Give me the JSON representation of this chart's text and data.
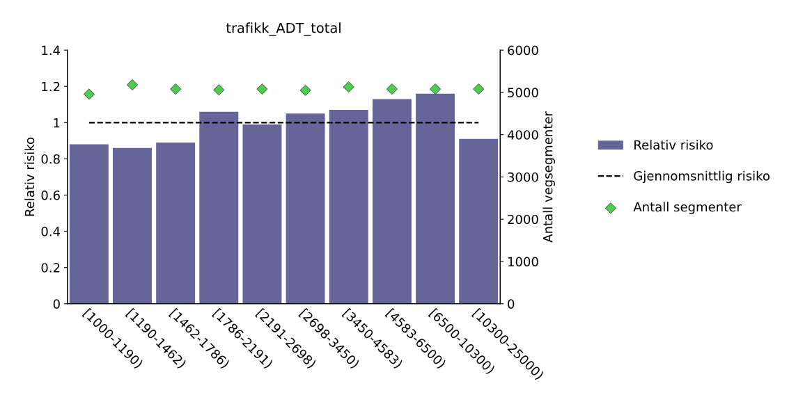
{
  "chart_data": {
    "type": "bar",
    "title": "trafikk_ADT_total",
    "ylabel": "Relativ risiko",
    "y2label": "Antall vegsegmenter",
    "categories": [
      "[1000-1190)",
      "[1190-1462)",
      "[1462-1786)",
      "[1786-2191)",
      "[2191-2698)",
      "[2698-3450)",
      "[3450-4583)",
      "[4583-6500)",
      "[6500-10300)",
      "[10300-25000)"
    ],
    "series": [
      {
        "name": "Relativ risiko",
        "color": "#65659a",
        "values": [
          0.88,
          0.86,
          0.89,
          1.06,
          0.99,
          1.05,
          1.07,
          1.13,
          1.16,
          0.91
        ]
      },
      {
        "name": "Gjennomsnittlig risiko",
        "type": "line",
        "color": "#000000",
        "line_style": "dashed",
        "marker": "none",
        "values": [
          1,
          1,
          1,
          1,
          1,
          1,
          1,
          1,
          1,
          1
        ]
      },
      {
        "name": "Antall segmenter",
        "type": "scatter",
        "axis": "y2",
        "color": "#4ccd4c",
        "marker": "diamond",
        "values": [
          4960,
          5180,
          5080,
          5060,
          5080,
          5050,
          5130,
          5080,
          5080,
          5080
        ]
      }
    ],
    "ylim": [
      0,
      1.4
    ],
    "yticks": [
      0,
      0.2,
      0.4,
      0.6,
      0.8,
      1,
      1.2,
      1.4
    ],
    "y2lim": [
      0,
      6000
    ],
    "y2ticks": [
      0,
      1000,
      2000,
      3000,
      4000,
      5000,
      6000
    ],
    "grid": false,
    "legend": "right"
  }
}
